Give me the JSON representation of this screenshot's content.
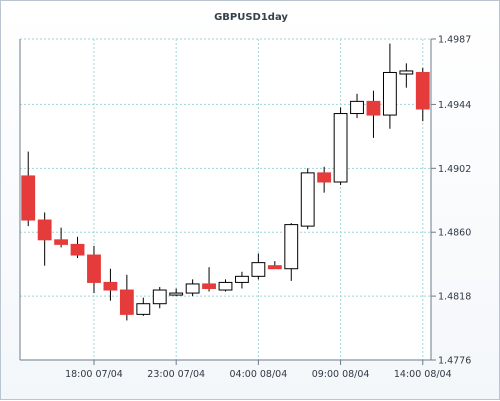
{
  "chart_data": {
    "type": "candlestick",
    "title": "GBPUSD1day",
    "y_ticks": [
      1.4776,
      1.4818,
      1.486,
      1.4902,
      1.4944,
      1.4987
    ],
    "ylim": [
      1.4776,
      1.4987
    ],
    "x_tick_labels": [
      "18:00 07/04",
      "23:00 07/04",
      "04:00 08/04",
      "09:00 08/04",
      "14:00 08/04"
    ],
    "x_tick_candle_index": [
      4.5,
      9.5,
      14.5,
      19.5,
      24.5
    ],
    "grid": true,
    "up_color": "#ffffff",
    "down_color": "#e53b3b",
    "wick_color": "#000000",
    "grid_color": "#9fd6d6",
    "candles": [
      {
        "open": 1.4897,
        "high": 1.4913,
        "low": 1.4864,
        "close": 1.4868
      },
      {
        "open": 1.4868,
        "high": 1.4873,
        "low": 1.4838,
        "close": 1.4855
      },
      {
        "open": 1.4855,
        "high": 1.4863,
        "low": 1.485,
        "close": 1.4852
      },
      {
        "open": 1.4852,
        "high": 1.4857,
        "low": 1.4843,
        "close": 1.4845
      },
      {
        "open": 1.4845,
        "high": 1.4851,
        "low": 1.482,
        "close": 1.4827
      },
      {
        "open": 1.4827,
        "high": 1.4836,
        "low": 1.4815,
        "close": 1.4822
      },
      {
        "open": 1.4822,
        "high": 1.4832,
        "low": 1.4802,
        "close": 1.4806
      },
      {
        "open": 1.4806,
        "high": 1.4817,
        "low": 1.4805,
        "close": 1.4813
      },
      {
        "open": 1.4813,
        "high": 1.4824,
        "low": 1.481,
        "close": 1.4822
      },
      {
        "open": 1.482,
        "high": 1.4823,
        "low": 1.4818,
        "close": 1.482
      },
      {
        "open": 1.482,
        "high": 1.4829,
        "low": 1.4818,
        "close": 1.4826
      },
      {
        "open": 1.4826,
        "high": 1.4837,
        "low": 1.4821,
        "close": 1.4823
      },
      {
        "open": 1.4822,
        "high": 1.4829,
        "low": 1.4821,
        "close": 1.4827
      },
      {
        "open": 1.4827,
        "high": 1.4834,
        "low": 1.4823,
        "close": 1.4831
      },
      {
        "open": 1.4831,
        "high": 1.4846,
        "low": 1.4829,
        "close": 1.484
      },
      {
        "open": 1.4838,
        "high": 1.4841,
        "low": 1.4836,
        "close": 1.4836
      },
      {
        "open": 1.4836,
        "high": 1.4866,
        "low": 1.4828,
        "close": 1.4865
      },
      {
        "open": 1.4864,
        "high": 1.4902,
        "low": 1.4862,
        "close": 1.4899
      },
      {
        "open": 1.4899,
        "high": 1.4903,
        "low": 1.4886,
        "close": 1.4893
      },
      {
        "open": 1.4893,
        "high": 1.4942,
        "low": 1.4891,
        "close": 1.4938
      },
      {
        "open": 1.4938,
        "high": 1.4951,
        "low": 1.4935,
        "close": 1.4946
      },
      {
        "open": 1.4946,
        "high": 1.4953,
        "low": 1.4922,
        "close": 1.4937
      },
      {
        "open": 1.4937,
        "high": 1.4984,
        "low": 1.4928,
        "close": 1.4965
      },
      {
        "open": 1.4964,
        "high": 1.4971,
        "low": 1.4955,
        "close": 1.4966
      },
      {
        "open": 1.4965,
        "high": 1.4968,
        "low": 1.4933,
        "close": 1.4941
      }
    ]
  }
}
